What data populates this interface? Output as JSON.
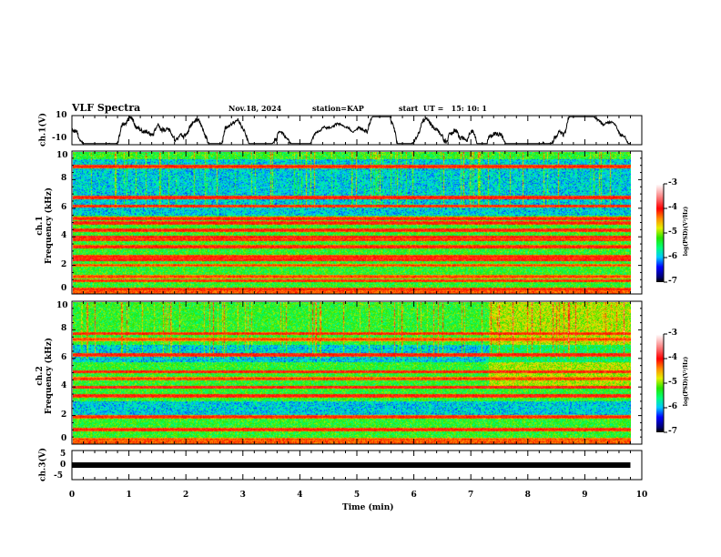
{
  "header": {
    "title": "VLF Spectra",
    "date": "Nov.18, 2024",
    "station": "station=KAP",
    "start": "start  UT =   15: 10: 1"
  },
  "chart_data": [
    {
      "type": "line",
      "name": "ch1-waveform",
      "ylabel": "ch.1(V)",
      "ylim": [
        -10,
        10
      ],
      "yticks": [
        "10",
        "-10"
      ],
      "xlim": [
        0,
        10
      ],
      "data_end_min": 9.8,
      "description_values": {
        "amplitude_range_v": [
          -10,
          10
        ]
      }
    },
    {
      "type": "heatmap",
      "name": "ch1-spectrogram",
      "ylabel": "ch.1\nFrequency  (kHz)",
      "ylabel_a": "ch.1",
      "ylabel_b": "Frequency  (kHz)",
      "ylim": [
        0,
        10
      ],
      "yticks": [
        "0",
        "2",
        "4",
        "6",
        "8",
        "10"
      ],
      "xlim": [
        0,
        10
      ],
      "data_end_min": 9.8,
      "background_log_psd": -5.3,
      "quiet_band_khz": [
        5.5,
        9.5
      ],
      "quiet_log_psd": -5.9,
      "bands_khz": [
        0.3,
        0.9,
        1.2,
        2.0,
        2.4,
        2.6,
        3.3,
        3.8,
        4.0,
        4.5,
        5.0,
        5.3,
        6.2,
        6.8,
        9.0
      ],
      "band_log_psd": -4.0,
      "colorbar": {
        "label": "log(PSD)(V²/Hz)",
        "ticks": [
          "-3",
          "-4",
          "-5",
          "-6",
          "-7"
        ],
        "range": [
          -7,
          -3
        ]
      }
    },
    {
      "type": "heatmap",
      "name": "ch2-spectrogram",
      "ylabel_a": "ch.2",
      "ylabel_b": "Frequency  (kHz)",
      "ylim": [
        0,
        10
      ],
      "yticks": [
        "0",
        "2",
        "4",
        "6",
        "8",
        "10"
      ],
      "xlim": [
        0,
        10
      ],
      "data_end_min": 9.8,
      "background_log_psd": -5.3,
      "quiet_band_khz": [
        2.0,
        3.0
      ],
      "quiet2_band_khz": [
        5.8,
        7.0
      ],
      "quiet_log_psd": -5.9,
      "change_time_min": 7.3,
      "bands_khz": [
        0.3,
        1.0,
        1.9,
        3.4,
        4.0,
        4.6,
        5.1,
        6.3,
        7.4,
        7.8
      ],
      "band_log_psd": -4.0,
      "colorbar": {
        "label": "log(PSD)(V²/Hz)",
        "ticks": [
          "-3",
          "-4",
          "-5",
          "-6",
          "-7"
        ],
        "range": [
          -7,
          -3
        ]
      }
    },
    {
      "type": "line",
      "name": "ch3-signal",
      "ylabel": "ch.3(V)",
      "ylim": [
        -5,
        5
      ],
      "yticks": [
        "5",
        "0",
        "-5"
      ],
      "value_v": 0,
      "xlim": [
        0,
        10
      ],
      "data_end_min": 9.8
    }
  ],
  "xaxis": {
    "label": "Time  (min)",
    "ticks": [
      "0",
      "1",
      "2",
      "3",
      "4",
      "5",
      "6",
      "7",
      "8",
      "9",
      "10"
    ]
  },
  "colors": {
    "axis": "#000000"
  }
}
